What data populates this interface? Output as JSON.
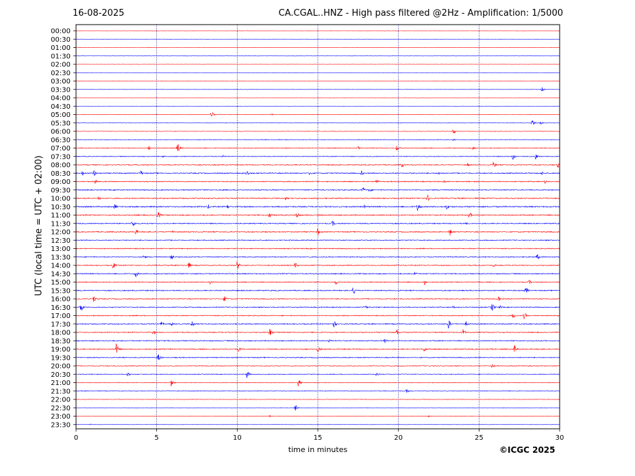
{
  "header": {
    "date": "16-08-2025",
    "station_title": "CA.CGAL..HNZ - High pass filtered @2Hz - Amplification: 1/5000"
  },
  "chart_data": {
    "type": "line",
    "title": "CA.CGAL..HNZ - High pass filtered @2Hz - Amplification: 1/5000",
    "date": "16-08-2025",
    "xlabel": "time in minutes",
    "ylabel": "UTC (local time = UTC + 02:00)",
    "xlim": [
      0,
      30
    ],
    "x_ticks": [
      0,
      5,
      10,
      15,
      20,
      25,
      30
    ],
    "x_tick_labels": [
      "0",
      "5",
      "10",
      "15",
      "20",
      "25",
      "30"
    ],
    "vertical_gridlines": [
      5,
      10,
      15,
      20,
      25
    ],
    "grid": "dotted vertical",
    "trace_colors": [
      "#ff0000",
      "#0000ff"
    ],
    "rows": [
      "00:00",
      "00:30",
      "01:00",
      "01:30",
      "02:00",
      "02:30",
      "03:00",
      "03:30",
      "04:00",
      "04:30",
      "05:00",
      "05:30",
      "06:00",
      "06:30",
      "07:00",
      "07:30",
      "08:00",
      "08:30",
      "09:00",
      "09:30",
      "10:00",
      "10:30",
      "11:00",
      "11:30",
      "12:00",
      "12:30",
      "13:00",
      "13:30",
      "14:00",
      "14:30",
      "15:00",
      "15:30",
      "16:00",
      "16:30",
      "17:00",
      "17:30",
      "18:00",
      "18:30",
      "19:00",
      "19:30",
      "20:00",
      "20:30",
      "21:00",
      "21:30",
      "22:00",
      "22:30",
      "23:00",
      "23:30"
    ],
    "noise_level": [
      0.3,
      0.3,
      0.3,
      0.4,
      0.3,
      0.3,
      0.3,
      0.4,
      0.3,
      0.3,
      0.5,
      0.5,
      0.6,
      0.8,
      1.0,
      1.0,
      1.2,
      1.4,
      1.3,
      1.3,
      1.4,
      1.6,
      1.4,
      1.3,
      1.3,
      1.2,
      1.2,
      1.2,
      1.2,
      1.3,
      1.2,
      1.3,
      1.2,
      1.2,
      1.2,
      1.3,
      1.2,
      1.3,
      1.3,
      1.2,
      1.0,
      0.9,
      0.8,
      0.8,
      0.6,
      0.5,
      0.4,
      0.4
    ],
    "events": [
      {
        "row": 1,
        "t": 6.8,
        "amp": 0.5
      },
      {
        "row": 3,
        "t": 6.8,
        "amp": 0.6
      },
      {
        "row": 7,
        "t": 28.9,
        "amp": 4
      },
      {
        "row": 10,
        "t": 8.4,
        "amp": 6
      },
      {
        "row": 10,
        "t": 12.1,
        "amp": 2
      },
      {
        "row": 11,
        "t": 28.3,
        "amp": 6
      },
      {
        "row": 11,
        "t": 28.8,
        "amp": 3
      },
      {
        "row": 12,
        "t": 23.4,
        "amp": 5
      },
      {
        "row": 13,
        "t": 23.4,
        "amp": 2
      },
      {
        "row": 14,
        "t": 4.5,
        "amp": 4
      },
      {
        "row": 14,
        "t": 6.3,
        "amp": 8
      },
      {
        "row": 14,
        "t": 17.5,
        "amp": 3
      },
      {
        "row": 14,
        "t": 19.9,
        "amp": 5
      },
      {
        "row": 14,
        "t": 24.6,
        "amp": 3
      },
      {
        "row": 15,
        "t": 5.4,
        "amp": 2
      },
      {
        "row": 15,
        "t": 9.1,
        "amp": 2
      },
      {
        "row": 15,
        "t": 27.1,
        "amp": 6
      },
      {
        "row": 15,
        "t": 28.5,
        "amp": 5
      },
      {
        "row": 16,
        "t": 20.2,
        "amp": 5
      },
      {
        "row": 16,
        "t": 24.3,
        "amp": 3
      },
      {
        "row": 16,
        "t": 25.9,
        "amp": 6
      },
      {
        "row": 16,
        "t": 29.9,
        "amp": 5
      },
      {
        "row": 17,
        "t": 0.4,
        "amp": 4
      },
      {
        "row": 17,
        "t": 1.1,
        "amp": 6
      },
      {
        "row": 17,
        "t": 4.0,
        "amp": 5
      },
      {
        "row": 17,
        "t": 10.6,
        "amp": 5
      },
      {
        "row": 17,
        "t": 14.5,
        "amp": 4
      },
      {
        "row": 17,
        "t": 17.7,
        "amp": 4
      },
      {
        "row": 17,
        "t": 22.5,
        "amp": 3
      },
      {
        "row": 17,
        "t": 28.9,
        "amp": 3
      },
      {
        "row": 18,
        "t": 1.2,
        "amp": 4
      },
      {
        "row": 18,
        "t": 18.6,
        "amp": 5
      },
      {
        "row": 18,
        "t": 22.8,
        "amp": 3
      },
      {
        "row": 18,
        "t": 29.1,
        "amp": 4
      },
      {
        "row": 19,
        "t": 17.8,
        "amp": 5
      },
      {
        "row": 19,
        "t": 18.2,
        "amp": 4
      },
      {
        "row": 20,
        "t": 1.4,
        "amp": 4
      },
      {
        "row": 20,
        "t": 13.0,
        "amp": 3
      },
      {
        "row": 20,
        "t": 21.8,
        "amp": 6
      },
      {
        "row": 21,
        "t": 2.4,
        "amp": 5
      },
      {
        "row": 21,
        "t": 8.2,
        "amp": 4
      },
      {
        "row": 21,
        "t": 9.4,
        "amp": 4
      },
      {
        "row": 21,
        "t": 17.9,
        "amp": 3
      },
      {
        "row": 21,
        "t": 21.2,
        "amp": 8
      },
      {
        "row": 21,
        "t": 23.0,
        "amp": 5
      },
      {
        "row": 22,
        "t": 5.1,
        "amp": 6
      },
      {
        "row": 22,
        "t": 12.0,
        "amp": 5
      },
      {
        "row": 22,
        "t": 13.7,
        "amp": 6
      },
      {
        "row": 22,
        "t": 24.4,
        "amp": 6
      },
      {
        "row": 23,
        "t": 3.5,
        "amp": 8
      },
      {
        "row": 23,
        "t": 15.9,
        "amp": 5
      },
      {
        "row": 23,
        "t": 24.2,
        "amp": 2
      },
      {
        "row": 24,
        "t": 3.7,
        "amp": 5
      },
      {
        "row": 24,
        "t": 6.0,
        "amp": 3
      },
      {
        "row": 24,
        "t": 15.0,
        "amp": 6
      },
      {
        "row": 24,
        "t": 23.2,
        "amp": 6
      },
      {
        "row": 27,
        "t": 4.2,
        "amp": 4
      },
      {
        "row": 27,
        "t": 5.9,
        "amp": 6
      },
      {
        "row": 27,
        "t": 28.6,
        "amp": 5
      },
      {
        "row": 28,
        "t": 2.3,
        "amp": 6
      },
      {
        "row": 28,
        "t": 7.0,
        "amp": 5
      },
      {
        "row": 28,
        "t": 10.0,
        "amp": 8
      },
      {
        "row": 28,
        "t": 13.6,
        "amp": 5
      },
      {
        "row": 28,
        "t": 25.9,
        "amp": 3
      },
      {
        "row": 29,
        "t": 3.7,
        "amp": 6
      },
      {
        "row": 29,
        "t": 21.0,
        "amp": 4
      },
      {
        "row": 30,
        "t": 8.3,
        "amp": 4
      },
      {
        "row": 30,
        "t": 16.1,
        "amp": 4
      },
      {
        "row": 30,
        "t": 21.6,
        "amp": 5
      },
      {
        "row": 30,
        "t": 28.1,
        "amp": 4
      },
      {
        "row": 31,
        "t": 17.2,
        "amp": 7
      },
      {
        "row": 31,
        "t": 27.9,
        "amp": 7
      },
      {
        "row": 32,
        "t": 1.1,
        "amp": 6
      },
      {
        "row": 32,
        "t": 9.2,
        "amp": 5
      },
      {
        "row": 32,
        "t": 26.2,
        "amp": 4
      },
      {
        "row": 33,
        "t": 0.3,
        "amp": 8
      },
      {
        "row": 33,
        "t": 17.9,
        "amp": 5
      },
      {
        "row": 33,
        "t": 23.4,
        "amp": 3
      },
      {
        "row": 33,
        "t": 25.8,
        "amp": 7
      },
      {
        "row": 33,
        "t": 26.3,
        "amp": 3
      },
      {
        "row": 34,
        "t": 27.1,
        "amp": 5
      },
      {
        "row": 34,
        "t": 27.8,
        "amp": 6
      },
      {
        "row": 35,
        "t": 5.3,
        "amp": 4
      },
      {
        "row": 35,
        "t": 5.9,
        "amp": 4
      },
      {
        "row": 35,
        "t": 7.2,
        "amp": 5
      },
      {
        "row": 35,
        "t": 16.0,
        "amp": 6
      },
      {
        "row": 35,
        "t": 23.1,
        "amp": 8
      },
      {
        "row": 35,
        "t": 24.2,
        "amp": 4
      },
      {
        "row": 36,
        "t": 4.8,
        "amp": 4
      },
      {
        "row": 36,
        "t": 12.0,
        "amp": 8
      },
      {
        "row": 36,
        "t": 19.9,
        "amp": 6
      },
      {
        "row": 36,
        "t": 24.0,
        "amp": 6
      },
      {
        "row": 37,
        "t": 15.7,
        "amp": 3
      },
      {
        "row": 37,
        "t": 19.1,
        "amp": 5
      },
      {
        "row": 38,
        "t": 2.5,
        "amp": 9
      },
      {
        "row": 38,
        "t": 10.1,
        "amp": 4
      },
      {
        "row": 38,
        "t": 15.0,
        "amp": 5
      },
      {
        "row": 38,
        "t": 21.6,
        "amp": 5
      },
      {
        "row": 38,
        "t": 27.2,
        "amp": 7
      },
      {
        "row": 39,
        "t": 5.1,
        "amp": 6
      },
      {
        "row": 40,
        "t": 25.8,
        "amp": 4
      },
      {
        "row": 41,
        "t": 3.2,
        "amp": 4
      },
      {
        "row": 41,
        "t": 10.6,
        "amp": 6
      },
      {
        "row": 41,
        "t": 18.6,
        "amp": 4
      },
      {
        "row": 42,
        "t": 5.9,
        "amp": 6
      },
      {
        "row": 42,
        "t": 13.8,
        "amp": 7
      },
      {
        "row": 43,
        "t": 20.5,
        "amp": 3
      },
      {
        "row": 45,
        "t": 13.6,
        "amp": 5
      },
      {
        "row": 46,
        "t": 12.0,
        "amp": 2
      },
      {
        "row": 46,
        "t": 21.8,
        "amp": 2
      },
      {
        "row": 47,
        "t": 0.9,
        "amp": 1
      }
    ]
  },
  "footer": {
    "copyright": "©ICGC 2025"
  }
}
